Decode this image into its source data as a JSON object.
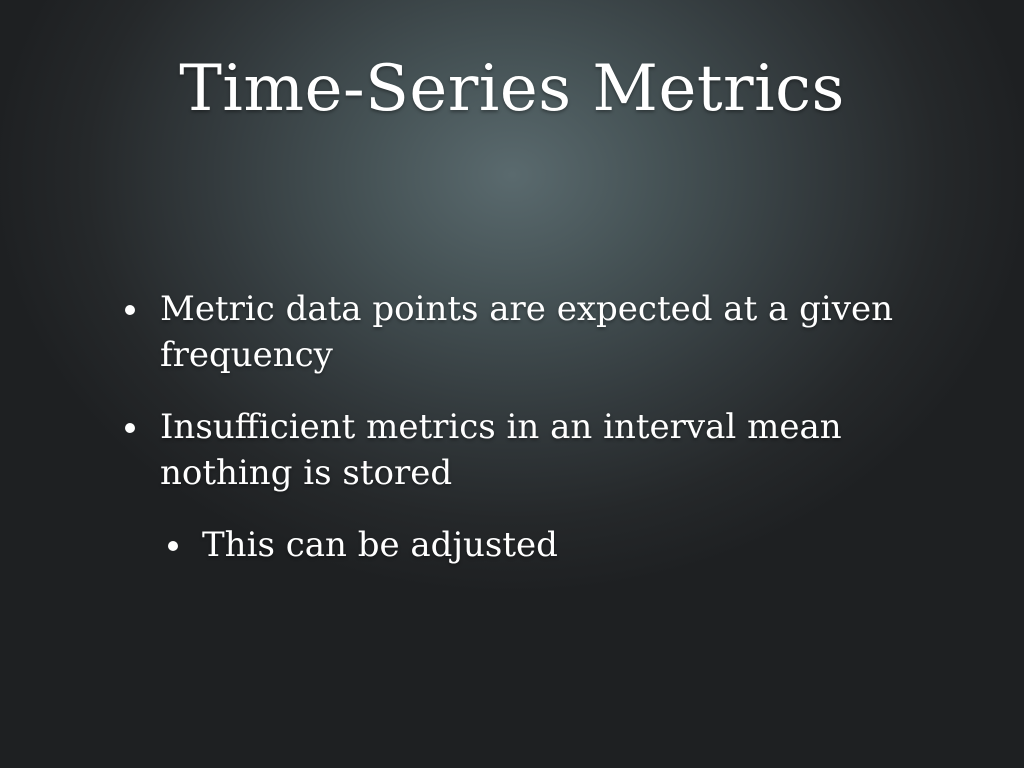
{
  "slide": {
    "title": "Time-Series Metrics",
    "bullets": [
      {
        "text": "Metric data points are expected at a given frequency",
        "level": 1
      },
      {
        "text": "Insufficient metrics in an interval mean nothing is stored",
        "level": 1
      },
      {
        "text": "This can be adjusted",
        "level": 2
      }
    ]
  }
}
